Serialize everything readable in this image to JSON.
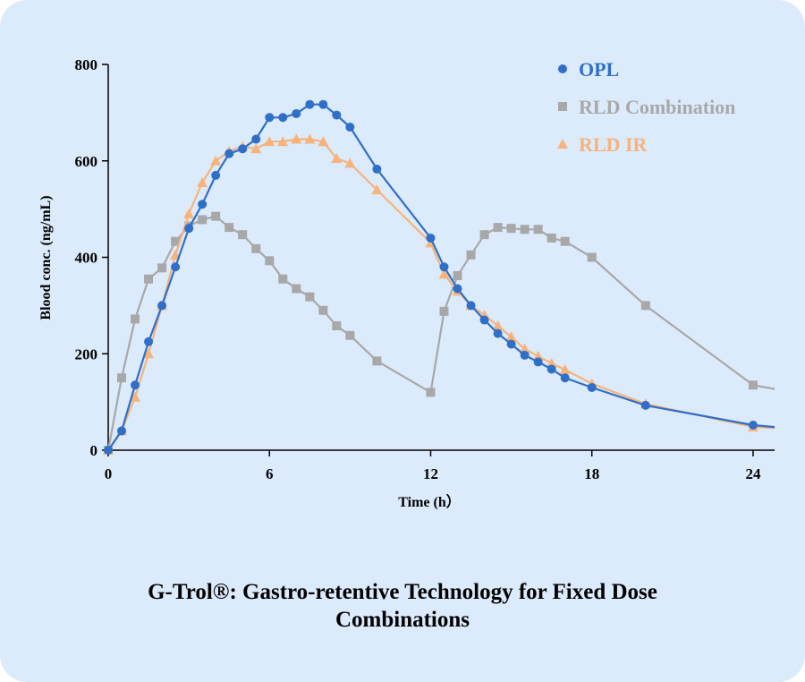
{
  "caption": {
    "line1": "G-Trol®: Gastro-retentive Technology for Fixed Dose",
    "line2": "Combinations"
  },
  "chart_data": {
    "type": "line",
    "title": "",
    "xlabel": "Time (h）",
    "ylabel": "Blood conc. (ng/mL)",
    "xlim": [
      0,
      24.8
    ],
    "ylim": [
      0,
      800
    ],
    "xticks": [
      0,
      6,
      12,
      18,
      24
    ],
    "yticks": [
      0,
      200,
      400,
      600,
      800
    ],
    "grid": false,
    "legend_position": "top-right",
    "series": [
      {
        "name": "OPL",
        "color": "#2f6fc8",
        "marker": "circle",
        "x": [
          0,
          0.5,
          1,
          1.5,
          2,
          2.5,
          3,
          3.5,
          4,
          4.5,
          5,
          5.5,
          6,
          6.5,
          7,
          7.5,
          8,
          8.5,
          9,
          10,
          12,
          12.5,
          13,
          13.5,
          14,
          14.5,
          15,
          15.5,
          16,
          16.5,
          17,
          18,
          20,
          24,
          24.8
        ],
        "y": [
          0,
          40,
          135,
          225,
          300,
          380,
          460,
          510,
          570,
          615,
          625,
          645,
          690,
          690,
          698,
          717,
          717,
          695,
          670,
          583,
          440,
          380,
          335,
          300,
          270,
          242,
          220,
          197,
          183,
          168,
          150,
          130,
          93,
          52,
          48
        ]
      },
      {
        "name": "RLD Combination",
        "color": "#a8a8a8",
        "marker": "square",
        "x": [
          0,
          0.5,
          1,
          1.5,
          2,
          2.5,
          3,
          3.5,
          4,
          4.5,
          5,
          5.5,
          6,
          6.5,
          7,
          7.5,
          8,
          8.5,
          9,
          10,
          12,
          12.5,
          13,
          13.5,
          14,
          14.5,
          15,
          15.5,
          16,
          16.5,
          17,
          18,
          20,
          24,
          24.8
        ],
        "y": [
          0,
          150,
          272,
          355,
          378,
          433,
          465,
          478,
          485,
          462,
          447,
          418,
          393,
          355,
          335,
          318,
          290,
          258,
          238,
          185,
          120,
          288,
          362,
          405,
          447,
          462,
          460,
          458,
          458,
          440,
          433,
          400,
          300,
          135,
          127
        ]
      },
      {
        "name": "RLD IR",
        "color": "#f6b37c",
        "marker": "triangle",
        "x": [
          0,
          0.5,
          1,
          1.5,
          2,
          2.5,
          3,
          3.5,
          4,
          4.5,
          5,
          5.5,
          6,
          6.5,
          7,
          7.5,
          8,
          8.5,
          9,
          10,
          12,
          12.5,
          13,
          13.5,
          14,
          14.5,
          15,
          15.5,
          16,
          16.5,
          17,
          18,
          20,
          24,
          24.8
        ],
        "y": [
          0,
          40,
          110,
          200,
          300,
          405,
          490,
          555,
          600,
          620,
          630,
          625,
          640,
          640,
          645,
          645,
          640,
          605,
          595,
          540,
          430,
          365,
          330,
          300,
          280,
          258,
          235,
          210,
          195,
          180,
          167,
          138,
          96,
          48,
          46
        ]
      }
    ]
  }
}
